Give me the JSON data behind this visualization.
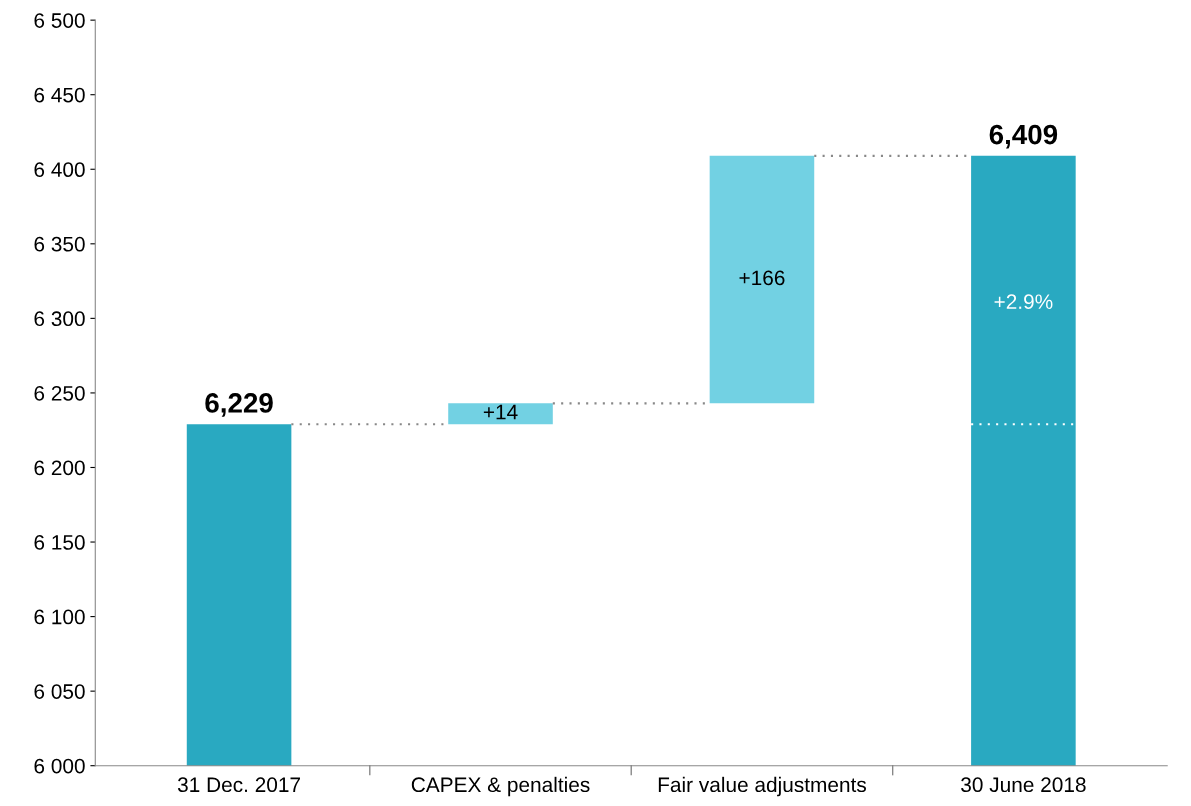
{
  "chart_data": {
    "type": "bar",
    "categories": [
      "31 Dec. 2017",
      "CAPEX & penalties",
      "Fair value adjustments",
      "30 June 2018"
    ],
    "values": [
      6229,
      14,
      166,
      6409
    ],
    "base": [
      null,
      6229,
      6243,
      null
    ],
    "colors": [
      "#29a9c1",
      "#72d1e3",
      "#72d1e3",
      "#29a9c1"
    ],
    "value_labels": [
      "6,229",
      "+14",
      "+166",
      "6,409"
    ],
    "annotations": [
      "+2.9%"
    ],
    "ylim": [
      6000,
      6500
    ],
    "yticks": [
      {
        "value": 6000,
        "label": "6 000"
      },
      {
        "value": 6050,
        "label": "6 050"
      },
      {
        "value": 6100,
        "label": "6 100"
      },
      {
        "value": 6150,
        "label": "6 150"
      },
      {
        "value": 6200,
        "label": "6 200"
      },
      {
        "value": 6250,
        "label": "6 250"
      },
      {
        "value": 6300,
        "label": "6 300"
      },
      {
        "value": 6350,
        "label": "6 350"
      },
      {
        "value": 6400,
        "label": "6 400"
      },
      {
        "value": 6450,
        "label": "6 450"
      },
      {
        "value": 6500,
        "label": "6 500"
      }
    ],
    "grid": false,
    "legend": false
  }
}
